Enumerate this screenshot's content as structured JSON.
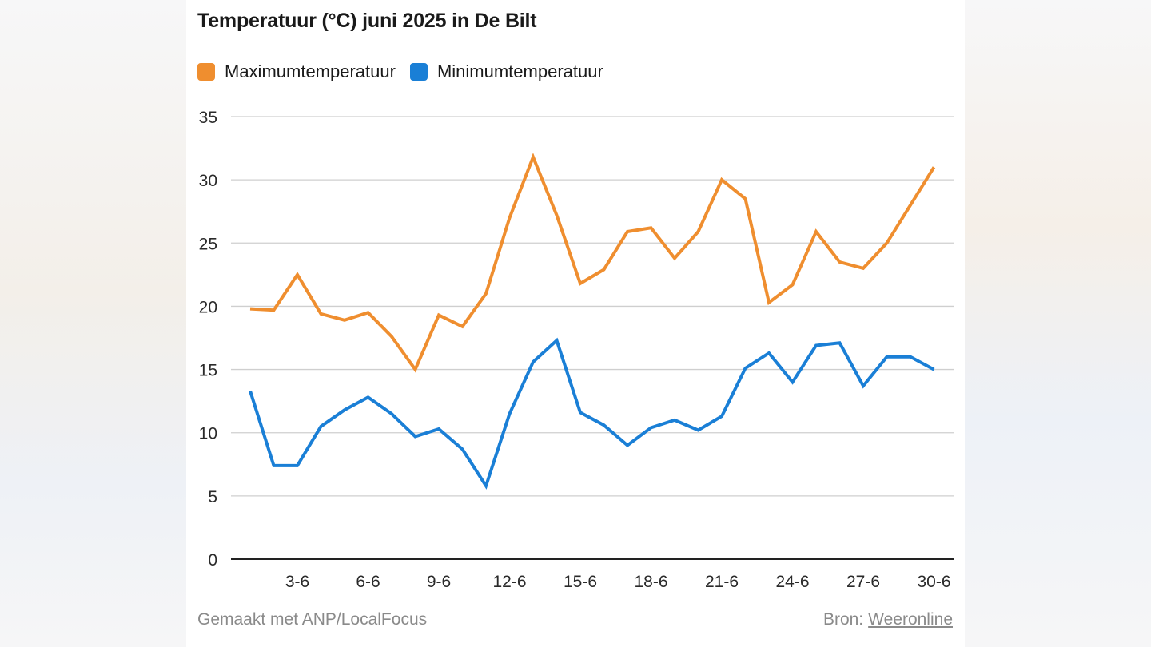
{
  "chart_data": {
    "type": "line",
    "title": "Temperatuur (°C) juni 2025 in De Bilt",
    "xlabel": "",
    "ylabel": "",
    "ylim": [
      0,
      35
    ],
    "yticks": [
      0,
      5,
      10,
      15,
      20,
      25,
      30,
      35
    ],
    "grid": true,
    "legend_position": "top-left",
    "x": [
      1,
      2,
      3,
      4,
      5,
      6,
      7,
      8,
      9,
      10,
      11,
      12,
      13,
      14,
      15,
      16,
      17,
      18,
      19,
      20,
      21,
      22,
      23,
      24,
      25,
      26,
      27,
      28,
      29,
      30
    ],
    "x_ticks": [
      3,
      6,
      9,
      12,
      15,
      18,
      21,
      24,
      27,
      30
    ],
    "x_tick_labels": [
      "3-6",
      "6-6",
      "9-6",
      "12-6",
      "15-6",
      "18-6",
      "21-6",
      "24-6",
      "27-6",
      "30-6"
    ],
    "series": [
      {
        "name": "Maximumtemperatuur",
        "color": "#ef8e2f",
        "values": [
          19.8,
          19.7,
          22.5,
          19.4,
          18.9,
          19.5,
          17.6,
          15.0,
          19.3,
          18.4,
          21.0,
          27.0,
          31.8,
          27.2,
          21.8,
          22.9,
          25.9,
          26.2,
          23.8,
          25.9,
          30.0,
          28.5,
          20.3,
          21.7,
          25.9,
          23.5,
          23.0,
          25.0,
          28.0,
          31.0
        ]
      },
      {
        "name": "Minimumtemperatuur",
        "color": "#1a7fd6",
        "values": [
          13.3,
          7.4,
          7.4,
          10.5,
          11.8,
          12.8,
          11.5,
          9.7,
          10.3,
          8.7,
          5.8,
          11.5,
          15.6,
          17.3,
          11.6,
          10.6,
          9.0,
          10.4,
          11.0,
          10.2,
          11.3,
          15.1,
          16.3,
          14.0,
          16.9,
          17.1,
          13.7,
          16.0,
          16.0,
          15.0
        ]
      }
    ]
  },
  "footer": {
    "made_with": "Gemaakt met ANP/LocalFocus",
    "source_label": "Bron:",
    "source_link": "Weeronline"
  }
}
